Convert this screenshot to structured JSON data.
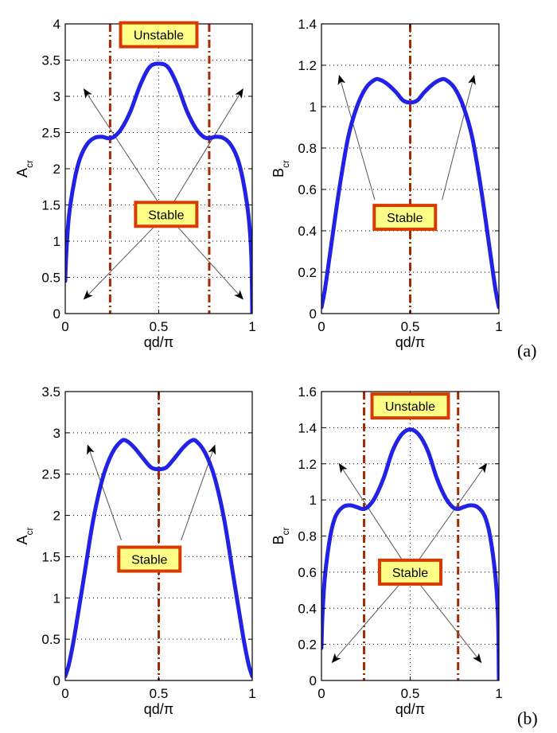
{
  "chart_data": [
    {
      "type": "line",
      "id": "a-left",
      "xlabel": "qd/π",
      "ylabel": "A",
      "ylabel_sub": "cr",
      "xlim": [
        0,
        1
      ],
      "ylim": [
        0,
        4
      ],
      "xticks": [
        0,
        0.5,
        1
      ],
      "xtick_labels": [
        "0",
        "0.5",
        "1"
      ],
      "yticks": [
        0,
        0.5,
        1,
        1.5,
        2,
        2.5,
        3,
        3.5,
        4
      ],
      "ytick_labels": [
        "0",
        "0.5",
        "1",
        "1.5",
        "2",
        "2.5",
        "3",
        "3.5",
        "4"
      ],
      "grid": true,
      "series": [
        {
          "color": "#2222e6",
          "x": [
            0,
            0.005,
            0.02,
            0.05,
            0.08,
            0.12,
            0.16,
            0.2,
            0.23,
            0.26,
            0.3,
            0.35,
            0.4,
            0.45,
            0.5,
            0.55,
            0.6,
            0.65,
            0.7,
            0.74,
            0.77,
            0.8,
            0.84,
            0.88,
            0.92,
            0.95,
            0.98,
            0.995,
            1
          ],
          "y": [
            0.45,
            0.8,
            1.35,
            1.85,
            2.15,
            2.35,
            2.43,
            2.44,
            2.42,
            2.44,
            2.55,
            2.8,
            3.15,
            3.4,
            3.45,
            3.4,
            3.15,
            2.8,
            2.55,
            2.44,
            2.42,
            2.44,
            2.43,
            2.35,
            2.15,
            1.85,
            1.35,
            0.8,
            0
          ]
        }
      ],
      "vlines": [
        {
          "x": 0.24,
          "color": "#a52a00"
        },
        {
          "x": 0.77,
          "color": "#a52a00"
        }
      ],
      "annotations": [
        {
          "text": "Unstable",
          "x": 0.5,
          "y": 3.85
        },
        {
          "text": "Stable",
          "x": 0.54,
          "y": 1.37
        }
      ],
      "arrows": [
        {
          "from": [
            0.54,
            1.37
          ],
          "to": [
            0.1,
            3.1
          ]
        },
        {
          "from": [
            0.54,
            1.37
          ],
          "to": [
            0.95,
            3.1
          ]
        },
        {
          "from": [
            0.54,
            1.37
          ],
          "to": [
            0.1,
            0.2
          ]
        },
        {
          "from": [
            0.54,
            1.37
          ],
          "to": [
            0.95,
            0.2
          ]
        }
      ]
    },
    {
      "type": "line",
      "id": "a-right",
      "xlabel": "qd/π",
      "ylabel": "B",
      "ylabel_sub": "cr",
      "xlim": [
        0,
        1
      ],
      "ylim": [
        0,
        1.4
      ],
      "xticks": [
        0,
        0.5,
        1
      ],
      "xtick_labels": [
        "0",
        "0.5",
        "1"
      ],
      "yticks": [
        0,
        0.2,
        0.4,
        0.6,
        0.8,
        1,
        1.2,
        1.4
      ],
      "ytick_labels": [
        "0",
        "0.2",
        "0.4",
        "0.6",
        "0.8",
        "1",
        "1.2",
        "1.4"
      ],
      "grid": true,
      "series": [
        {
          "color": "#2222e6",
          "x": [
            0,
            0.02,
            0.05,
            0.1,
            0.15,
            0.2,
            0.25,
            0.3,
            0.33,
            0.37,
            0.42,
            0.46,
            0.5,
            0.54,
            0.58,
            0.63,
            0.67,
            0.7,
            0.75,
            0.8,
            0.85,
            0.9,
            0.95,
            0.98,
            1
          ],
          "y": [
            0.03,
            0.12,
            0.3,
            0.6,
            0.85,
            1.0,
            1.09,
            1.13,
            1.13,
            1.11,
            1.07,
            1.03,
            1.02,
            1.03,
            1.07,
            1.11,
            1.13,
            1.13,
            1.09,
            1.0,
            0.85,
            0.6,
            0.3,
            0.12,
            0.03
          ]
        }
      ],
      "vlines": [
        {
          "x": 0.5,
          "color": "#a52a00"
        }
      ],
      "annotations": [
        {
          "text": "Stable",
          "x": 0.47,
          "y": 0.465
        }
      ],
      "arrows": [
        {
          "from": [
            0.3,
            0.55
          ],
          "to": [
            0.1,
            1.15
          ]
        },
        {
          "from": [
            0.68,
            0.55
          ],
          "to": [
            0.86,
            1.15
          ]
        }
      ]
    },
    {
      "type": "line",
      "id": "b-left",
      "xlabel": "qd/π",
      "ylabel": "A",
      "ylabel_sub": "cr",
      "xlim": [
        0,
        1
      ],
      "ylim": [
        0,
        3.5
      ],
      "xticks": [
        0,
        0.5,
        1
      ],
      "xtick_labels": [
        "0",
        "0.5",
        "1"
      ],
      "yticks": [
        0,
        0.5,
        1,
        1.5,
        2,
        2.5,
        3,
        3.5
      ],
      "ytick_labels": [
        "0",
        "0.5",
        "1",
        "1.5",
        "2",
        "2.5",
        "3",
        "3.5"
      ],
      "grid": true,
      "series": [
        {
          "color": "#2222e6",
          "x": [
            0,
            0.02,
            0.05,
            0.1,
            0.15,
            0.2,
            0.25,
            0.3,
            0.33,
            0.37,
            0.42,
            0.46,
            0.5,
            0.54,
            0.58,
            0.63,
            0.67,
            0.7,
            0.75,
            0.8,
            0.85,
            0.9,
            0.95,
            0.98,
            1
          ],
          "y": [
            0.05,
            0.2,
            0.55,
            1.25,
            1.95,
            2.45,
            2.75,
            2.9,
            2.9,
            2.82,
            2.68,
            2.58,
            2.56,
            2.58,
            2.68,
            2.82,
            2.9,
            2.9,
            2.75,
            2.45,
            1.95,
            1.25,
            0.55,
            0.2,
            0.05
          ]
        }
      ],
      "vlines": [
        {
          "x": 0.5,
          "color": "#a52a00"
        }
      ],
      "annotations": [
        {
          "text": "Stable",
          "x": 0.45,
          "y": 1.47
        }
      ],
      "arrows": [
        {
          "from": [
            0.3,
            1.7
          ],
          "to": [
            0.12,
            2.85
          ]
        },
        {
          "from": [
            0.62,
            1.7
          ],
          "to": [
            0.8,
            2.85
          ]
        }
      ]
    },
    {
      "type": "line",
      "id": "b-right",
      "xlabel": "qd/π",
      "ylabel": "B",
      "ylabel_sub": "cr",
      "xlim": [
        0,
        1
      ],
      "ylim": [
        0,
        1.6
      ],
      "xticks": [
        0,
        0.5,
        1
      ],
      "xtick_labels": [
        "0",
        "0.5",
        "1"
      ],
      "yticks": [
        0,
        0.2,
        0.4,
        0.6,
        0.8,
        1,
        1.2,
        1.4,
        1.6
      ],
      "ytick_labels": [
        "0",
        "0.2",
        "0.4",
        "0.6",
        "0.8",
        "1",
        "1.2",
        "1.4",
        "1.6"
      ],
      "grid": true,
      "series": [
        {
          "color": "#2222e6",
          "x": [
            0,
            0.005,
            0.02,
            0.05,
            0.08,
            0.12,
            0.16,
            0.2,
            0.23,
            0.26,
            0.3,
            0.35,
            0.4,
            0.45,
            0.5,
            0.55,
            0.6,
            0.65,
            0.7,
            0.74,
            0.77,
            0.8,
            0.84,
            0.88,
            0.92,
            0.95,
            0.98,
            0.995,
            1
          ],
          "y": [
            0.18,
            0.35,
            0.58,
            0.8,
            0.91,
            0.96,
            0.97,
            0.96,
            0.95,
            0.96,
            1.01,
            1.12,
            1.27,
            1.36,
            1.39,
            1.36,
            1.27,
            1.12,
            1.01,
            0.96,
            0.95,
            0.96,
            0.97,
            0.96,
            0.91,
            0.8,
            0.58,
            0.35,
            0
          ]
        }
      ],
      "vlines": [
        {
          "x": 0.24,
          "color": "#a52a00"
        },
        {
          "x": 0.77,
          "color": "#a52a00"
        }
      ],
      "annotations": [
        {
          "text": "Unstable",
          "x": 0.5,
          "y": 1.52
        },
        {
          "text": "Stable",
          "x": 0.5,
          "y": 0.6
        }
      ],
      "arrows": [
        {
          "from": [
            0.5,
            0.6
          ],
          "to": [
            0.1,
            1.2
          ]
        },
        {
          "from": [
            0.5,
            0.6
          ],
          "to": [
            0.93,
            1.2
          ]
        },
        {
          "from": [
            0.5,
            0.6
          ],
          "to": [
            0.06,
            0.1
          ]
        },
        {
          "from": [
            0.5,
            0.6
          ],
          "to": [
            0.9,
            0.1
          ]
        }
      ]
    }
  ],
  "figure_labels": [
    "(a)",
    "(b)"
  ]
}
